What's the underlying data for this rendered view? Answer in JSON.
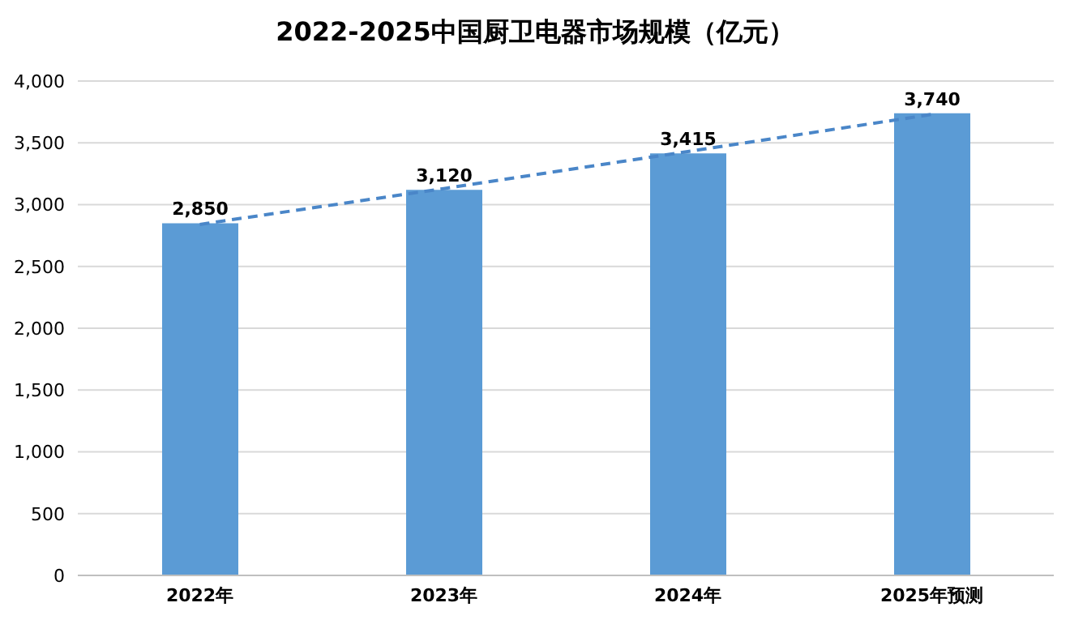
{
  "chart_data": {
    "type": "bar",
    "title": "2022-2025中国厨卫电器市场规模（亿元）",
    "categories": [
      "2022年",
      "2023年",
      "2024年",
      "2025年预测"
    ],
    "series": [
      {
        "color": "#5b9bd5",
        "values": [
          2850,
          3120,
          3415,
          3740
        ],
        "value_labels": [
          "2,850",
          "3,120",
          "3,415",
          "3,740"
        ]
      },
      {
        "type": "line",
        "color": "#4a86c8",
        "x": [
          "2022年",
          "2023年",
          "2024年",
          "2025年预测"
        ],
        "values": [
          2840,
          3130,
          3430,
          3730
        ],
        "line_style": "dashed",
        "marker": "none"
      }
    ],
    "ylim": [
      0,
      4000
    ],
    "yticks": [
      0,
      500,
      {
        "value": 1000,
        "label": "1,000"
      },
      {
        "value": 1500,
        "label": "1,500"
      },
      {
        "value": 2000,
        "label": "2,000"
      },
      {
        "value": 2500,
        "label": "2,500"
      },
      {
        "value": 3000,
        "label": "3,000"
      },
      {
        "value": 3500,
        "label": "3,500"
      },
      {
        "value": 4000,
        "label": "4,000"
      }
    ],
    "grid": "y"
  }
}
